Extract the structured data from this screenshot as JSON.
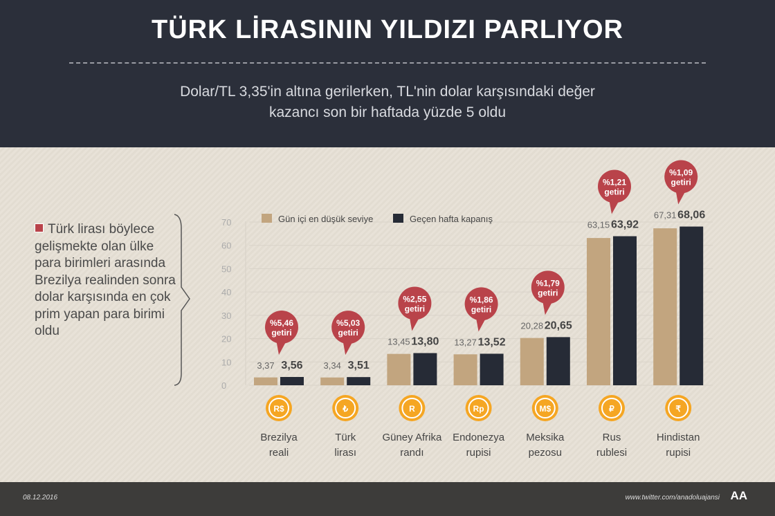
{
  "header": {
    "title": "TÜRK LİRASININ YILDIZI PARLIYOR",
    "subtitle_line1": "Dolar/TL 3,35'in altına gerilerken, TL'nin dolar karşısındaki değer",
    "subtitle_line2": "kazancı son bir haftada yüzde 5 oldu"
  },
  "note": "Türk lirası böylece gelişmekte olan ülke para birimleri arasında Brezilya realinden sonra dolar karşısında en çok prim yapan para birimi oldu",
  "footer": {
    "date": "08.12.2016",
    "twitter": "www.twitter.com/anadoluajansi",
    "logo": "AA"
  },
  "colors": {
    "low": "#c2a57f",
    "close": "#262b36",
    "bubble": "#b9434a",
    "icon": "#f5a623"
  },
  "chart_data": {
    "type": "bar",
    "ylim": [
      0,
      70
    ],
    "yticks": [
      0,
      10,
      20,
      30,
      40,
      50,
      60,
      70
    ],
    "grid": true,
    "legend_placement": "top-left",
    "categories": [
      [
        "Brezilya",
        "reali"
      ],
      [
        "Türk",
        "lirası"
      ],
      [
        "Güney Afrika",
        "randı"
      ],
      [
        "Endonezya",
        "rupisi"
      ],
      [
        "Meksika",
        "pezosu"
      ],
      [
        "Rus",
        "rublesi"
      ],
      [
        "Hindistan",
        "rupisi"
      ]
    ],
    "icons": [
      "R$",
      "₺",
      "R",
      "Rp",
      "M$",
      "₽",
      "₹"
    ],
    "series": [
      {
        "name": "Gün içi en düşük seviye",
        "values": [
          3.37,
          3.34,
          13.45,
          13.27,
          20.28,
          63.15,
          67.31
        ],
        "labels": [
          "3,37",
          "3,34",
          "13,45",
          "13,27",
          "20,28",
          "63,15",
          "67,31"
        ]
      },
      {
        "name": "Geçen hafta kapanış",
        "values": [
          3.56,
          3.51,
          13.8,
          13.52,
          20.65,
          63.92,
          68.06
        ],
        "labels": [
          "3,56",
          "3,51",
          "13,80",
          "13,52",
          "20,65",
          "63,92",
          "68,06"
        ]
      }
    ],
    "annotations": [
      [
        "%5,46",
        "getiri"
      ],
      [
        "%5,03",
        "getiri"
      ],
      [
        "%2,55",
        "getiri"
      ],
      [
        "%1,86",
        "getiri"
      ],
      [
        "%1,79",
        "getiri"
      ],
      [
        "%1,21",
        "getiri"
      ],
      [
        "%1,09",
        "getiri"
      ]
    ]
  }
}
